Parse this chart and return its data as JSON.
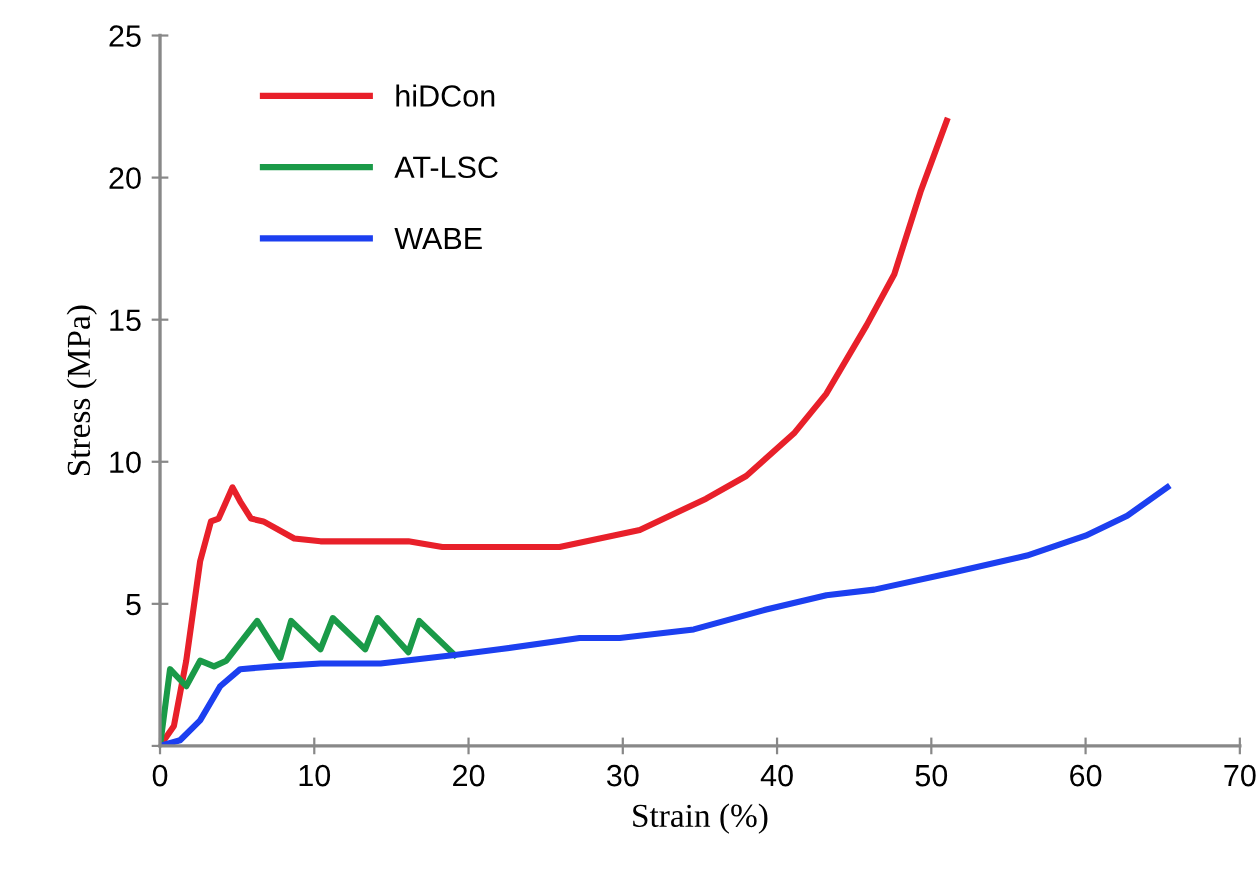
{
  "chart_data": {
    "type": "line",
    "xlabel": "Strain (%)",
    "ylabel": "Stress (MPa)",
    "xlim": [
      0,
      70
    ],
    "ylim": [
      0,
      25
    ],
    "xticks": [
      0,
      10,
      20,
      30,
      40,
      50,
      60,
      70
    ],
    "yticks": [
      {
        "value": 0,
        "label": null
      },
      5,
      10,
      15,
      20,
      25
    ],
    "grid": false,
    "legend": "top left",
    "marker": "none",
    "line_style": "solid",
    "series": [
      {
        "name": "hiDCon",
        "color": "#e8202a",
        "x": [
          0,
          0.9,
          1.7,
          2.6,
          3.3,
          3.8,
          4.7,
          5.2,
          5.9,
          6.7,
          8.7,
          10.4,
          12.6,
          16.1,
          18.3,
          22,
          23.5,
          25.9,
          28.5,
          31.1,
          35.4,
          38,
          41.1,
          43.2,
          45.8,
          47.6,
          49.3,
          51
        ],
        "values": [
          0,
          0.7,
          3.0,
          6.5,
          7.9,
          8.0,
          9.1,
          8.6,
          8.0,
          7.9,
          7.3,
          7.2,
          7.2,
          7.2,
          7.0,
          7.0,
          7.0,
          7.0,
          7.3,
          7.6,
          8.7,
          9.5,
          11.0,
          12.4,
          14.8,
          16.6,
          19.5,
          22.0
        ]
      },
      {
        "name": "AT-LSC",
        "color": "#1a9a48",
        "x": [
          0,
          0.65,
          1.7,
          2.6,
          3.5,
          4.3,
          6.3,
          7.8,
          8.5,
          10.4,
          11.2,
          13.3,
          14.1,
          16.1,
          16.8,
          19.1
        ],
        "values": [
          0,
          2.7,
          2.1,
          3.0,
          2.8,
          3.0,
          4.4,
          3.1,
          4.4,
          3.4,
          4.5,
          3.4,
          4.5,
          3.3,
          4.4,
          3.2
        ]
      },
      {
        "name": "WABE",
        "color": "#1c3ff0",
        "x": [
          0,
          1.3,
          2.6,
          3.9,
          5.2,
          7.4,
          10.4,
          14.3,
          19.1,
          22,
          27.2,
          29.8,
          34.6,
          39.3,
          43.2,
          46.3,
          51.4,
          56.2,
          60,
          62.7,
          65.3
        ],
        "values": [
          0,
          0.2,
          0.9,
          2.1,
          2.7,
          2.8,
          2.9,
          2.9,
          3.2,
          3.4,
          3.8,
          3.8,
          4.1,
          4.8,
          5.3,
          5.5,
          6.1,
          6.7,
          7.4,
          8.1,
          9.1
        ]
      }
    ]
  }
}
